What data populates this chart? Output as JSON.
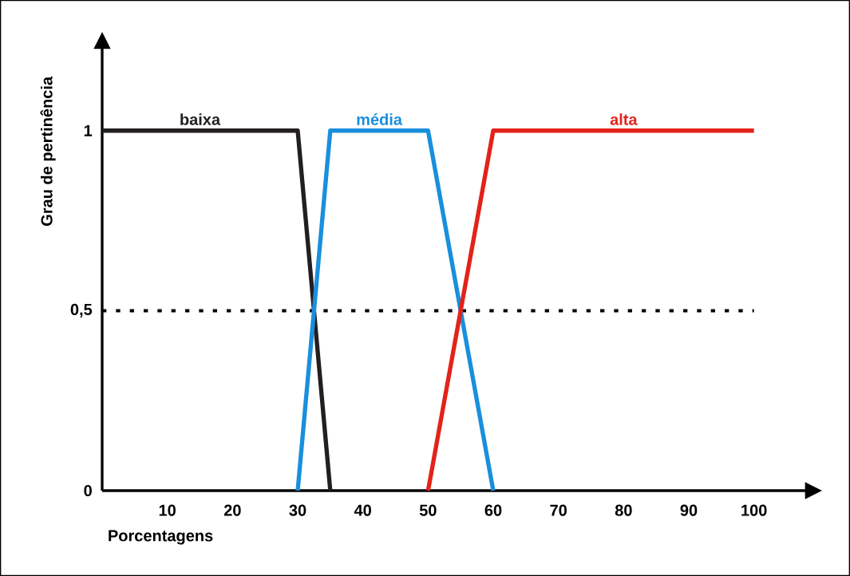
{
  "chart_data": {
    "type": "line",
    "xlabel": "Porcentagens",
    "ylabel": "Grau de pertinência",
    "series": [
      {
        "name": "baixa",
        "color": "#231f20",
        "x": [
          0,
          30,
          35
        ],
        "values": [
          1,
          1,
          0
        ]
      },
      {
        "name": "média",
        "color": "#1a8fdc",
        "x": [
          30,
          35,
          50,
          60
        ],
        "values": [
          0,
          1,
          1,
          0
        ]
      },
      {
        "name": "alta",
        "color": "#e2231a",
        "x": [
          50,
          60,
          100
        ],
        "values": [
          0,
          1,
          1
        ]
      }
    ],
    "xlim": [
      0,
      108
    ],
    "ylim": [
      0,
      1.23
    ],
    "xticks": [
      10,
      20,
      30,
      40,
      50,
      60,
      70,
      80,
      90,
      100
    ],
    "yticks": [
      0,
      {
        "value": 0.5,
        "label": "0,5"
      },
      1
    ],
    "ref_lines": [
      {
        "axis": "y",
        "value": 0.5,
        "color": "#000000",
        "line_style": "dotted"
      }
    ],
    "marker": "none",
    "line_style": "solid",
    "grid": false
  }
}
